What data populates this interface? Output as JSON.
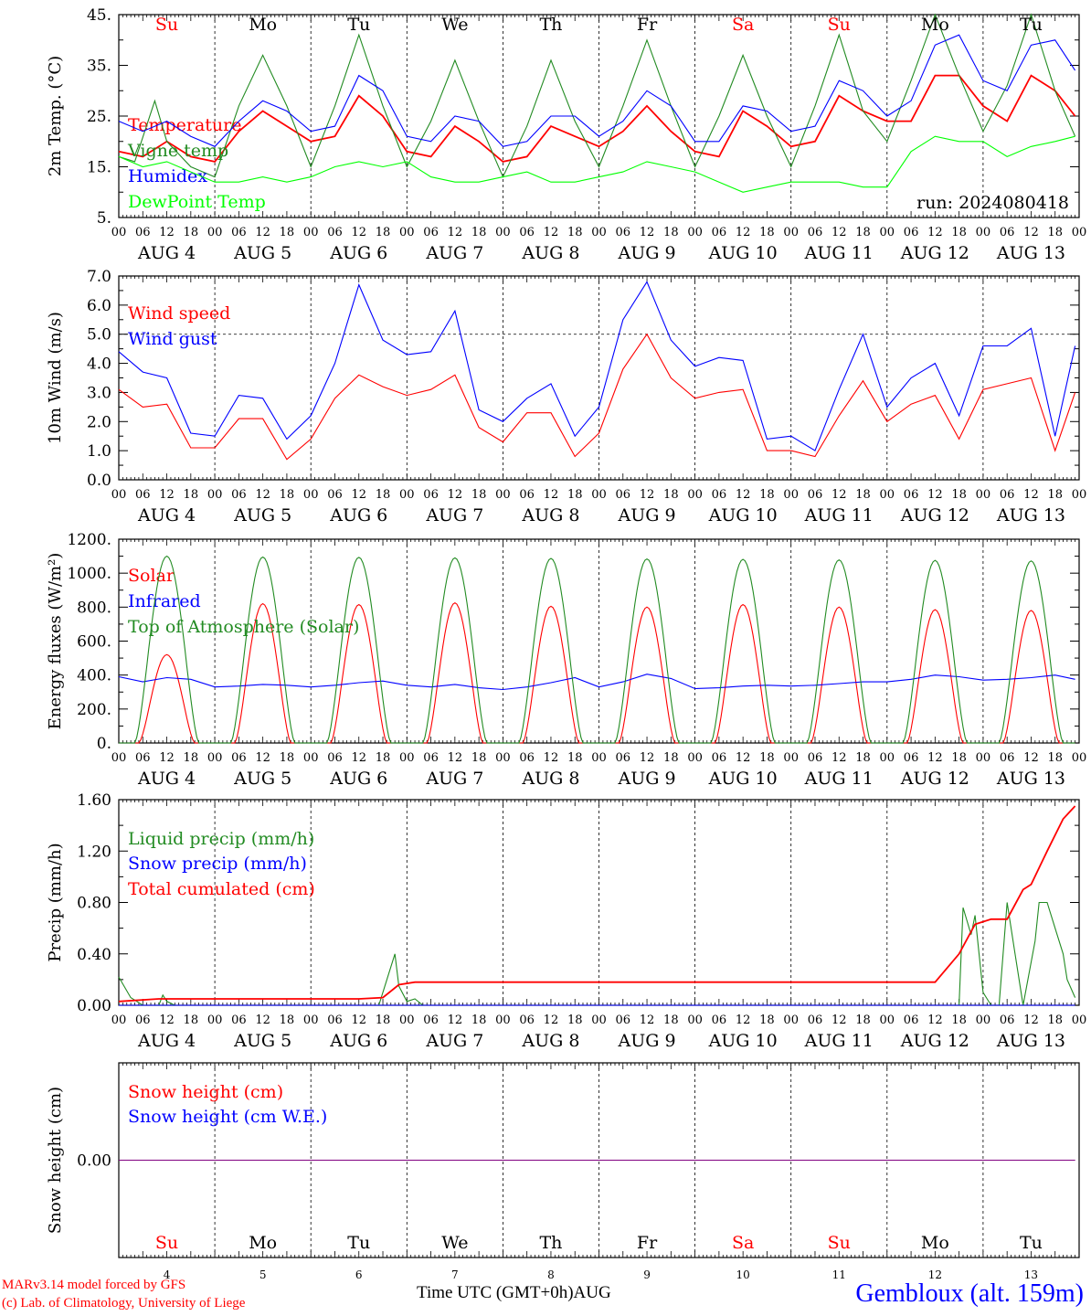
{
  "run_label": "run: 2024080418",
  "days": [
    "Su",
    "Mo",
    "Tu",
    "We",
    "Th",
    "Fr",
    "Sa",
    "Su",
    "Mo",
    "Tu"
  ],
  "day_colors": [
    "#ff0000",
    "#000000",
    "#000000",
    "#000000",
    "#000000",
    "#000000",
    "#ff0000",
    "#ff0000",
    "#000000",
    "#000000"
  ],
  "date_labels": [
    "AUG  4",
    "AUG  5",
    "AUG  6",
    "AUG  7",
    "AUG  8",
    "AUG  9",
    "AUG 10",
    "AUG 11",
    "AUG 12",
    "AUG 13"
  ],
  "hour_labels": [
    "00",
    "06",
    "12",
    "18"
  ],
  "bottom_day_numbers": [
    "4",
    "5",
    "6",
    "7",
    "8",
    "9",
    "10",
    "11",
    "12",
    "13"
  ],
  "footer": {
    "model": "MARv3.14 model forced by GFS",
    "credit": "(c) Lab. of Climatology, University of Liege",
    "xlabel": "Time UTC (GMT+0h)",
    "month": "AUG",
    "station": "Gembloux (alt. 159m)"
  },
  "chart_data": [
    {
      "type": "line",
      "ylabel": "2m Temp. (°C)",
      "ylim": [
        5,
        45
      ],
      "yticks": [
        "45.",
        "35.",
        "25.",
        "15.",
        "5."
      ],
      "x_unit": "hours since AUG 4 00 UTC",
      "grid": "vertical dashed day lines",
      "legend_position": "left",
      "series": [
        {
          "name": "Temperature",
          "color": "#ff0000",
          "x": [
            0,
            6,
            12,
            18,
            24,
            30,
            36,
            42,
            48,
            54,
            60,
            66,
            72,
            78,
            84,
            90,
            96,
            102,
            108,
            114,
            120,
            126,
            132,
            138,
            144,
            150,
            156,
            162,
            168,
            174,
            180,
            186,
            192,
            198,
            204,
            210,
            216,
            222,
            228,
            234,
            239
          ],
          "values": [
            18,
            17,
            20,
            17,
            16,
            22,
            26,
            23,
            20,
            21,
            29,
            25,
            18,
            17,
            23,
            20,
            16,
            17,
            23,
            21,
            19,
            22,
            27,
            22,
            18,
            17,
            26,
            23,
            19,
            20,
            29,
            26,
            24,
            24,
            33,
            33,
            27,
            24,
            33,
            30,
            25
          ]
        },
        {
          "name": "Vigne temp",
          "color": "#228b22",
          "x": [
            0,
            4,
            9,
            12,
            18,
            24,
            30,
            36,
            42,
            48,
            54,
            60,
            66,
            72,
            78,
            84,
            90,
            96,
            102,
            108,
            114,
            120,
            126,
            132,
            138,
            144,
            150,
            156,
            162,
            168,
            174,
            180,
            186,
            192,
            198,
            204,
            210,
            216,
            222,
            228,
            234,
            239
          ],
          "values": [
            17,
            16,
            28,
            20,
            15,
            13,
            27,
            37,
            27,
            15,
            27,
            41,
            27,
            15,
            24,
            36,
            24,
            13,
            23,
            36,
            24,
            15,
            27,
            40,
            27,
            15,
            25,
            37,
            25,
            15,
            27,
            41,
            26,
            20,
            32,
            45,
            33,
            22,
            31,
            45,
            30,
            21
          ]
        },
        {
          "name": "Humidex",
          "color": "#0000ff",
          "x": [
            0,
            6,
            12,
            18,
            24,
            30,
            36,
            42,
            48,
            54,
            60,
            66,
            72,
            78,
            84,
            90,
            96,
            102,
            108,
            114,
            120,
            126,
            132,
            138,
            144,
            150,
            156,
            162,
            168,
            174,
            180,
            186,
            192,
            198,
            204,
            210,
            216,
            222,
            228,
            234,
            239
          ],
          "values": [
            24,
            22,
            24,
            21,
            19,
            24,
            28,
            26,
            22,
            23,
            33,
            30,
            21,
            20,
            25,
            24,
            19,
            20,
            25,
            25,
            21,
            24,
            30,
            27,
            20,
            20,
            27,
            26,
            22,
            23,
            32,
            30,
            25,
            28,
            39,
            41,
            32,
            30,
            39,
            40,
            34
          ]
        },
        {
          "name": "DewPoint Temp",
          "color": "#00ff00",
          "x": [
            0,
            6,
            12,
            18,
            24,
            30,
            36,
            42,
            48,
            54,
            60,
            66,
            72,
            78,
            84,
            90,
            96,
            102,
            108,
            114,
            120,
            126,
            132,
            138,
            144,
            150,
            156,
            162,
            168,
            174,
            180,
            186,
            192,
            198,
            204,
            210,
            216,
            222,
            228,
            234,
            239
          ],
          "values": [
            17,
            15,
            16,
            14,
            12,
            12,
            13,
            12,
            13,
            15,
            16,
            15,
            16,
            13,
            12,
            12,
            13,
            14,
            12,
            12,
            13,
            14,
            16,
            15,
            14,
            12,
            10,
            11,
            12,
            12,
            12,
            11,
            11,
            18,
            21,
            20,
            20,
            17,
            19,
            20,
            21
          ]
        }
      ]
    },
    {
      "type": "line",
      "ylabel": "10m Wind (m/s)",
      "ylim": [
        0,
        7
      ],
      "yticks": [
        "7.0",
        "6.0",
        "5.0",
        "4.0",
        "3.0",
        "2.0",
        "1.0",
        "0.0"
      ],
      "reference_line": 5.0,
      "legend_position": "left",
      "series": [
        {
          "name": "Wind speed",
          "color": "#ff0000",
          "x": [
            0,
            6,
            12,
            18,
            24,
            30,
            36,
            42,
            48,
            54,
            60,
            66,
            72,
            78,
            84,
            90,
            96,
            102,
            108,
            114,
            120,
            126,
            132,
            138,
            144,
            150,
            156,
            162,
            168,
            174,
            180,
            186,
            192,
            198,
            204,
            210,
            216,
            222,
            228,
            234,
            239
          ],
          "values": [
            3.1,
            2.5,
            2.6,
            1.1,
            1.1,
            2.1,
            2.1,
            0.7,
            1.4,
            2.8,
            3.6,
            3.2,
            2.9,
            3.1,
            3.6,
            1.8,
            1.3,
            2.3,
            2.3,
            0.8,
            1.6,
            3.8,
            5.0,
            3.5,
            2.8,
            3.0,
            3.1,
            1.0,
            1.0,
            0.8,
            2.2,
            3.4,
            2.0,
            2.6,
            2.9,
            1.4,
            3.1,
            3.3,
            3.5,
            1.0,
            3.0
          ]
        },
        {
          "name": "Wind gust",
          "color": "#0000ff",
          "x": [
            0,
            6,
            12,
            18,
            24,
            30,
            36,
            42,
            48,
            54,
            60,
            66,
            72,
            78,
            84,
            90,
            96,
            102,
            108,
            114,
            120,
            126,
            132,
            138,
            144,
            150,
            156,
            162,
            168,
            174,
            180,
            186,
            192,
            198,
            204,
            210,
            216,
            222,
            228,
            234,
            239
          ],
          "values": [
            4.4,
            3.7,
            3.5,
            1.6,
            1.5,
            2.9,
            2.8,
            1.4,
            2.2,
            4.0,
            6.7,
            4.8,
            4.3,
            4.4,
            5.8,
            2.4,
            2.0,
            2.8,
            3.3,
            1.5,
            2.5,
            5.5,
            6.8,
            4.8,
            3.9,
            4.2,
            4.1,
            1.4,
            1.5,
            1.0,
            3.1,
            5.0,
            2.5,
            3.5,
            4.0,
            2.2,
            4.6,
            4.6,
            5.2,
            1.5,
            4.6
          ]
        }
      ]
    },
    {
      "type": "line",
      "ylabel": "Energy fluxes (W/m²)",
      "ylim": [
        0,
        1200
      ],
      "yticks": [
        "1200.",
        "1000.",
        "800.",
        "600.",
        "400.",
        "200.",
        "0."
      ],
      "legend_position": "left",
      "series": [
        {
          "name": "Solar",
          "color": "#ff0000",
          "peaks": [
            520,
            820,
            815,
            825,
            805,
            800,
            815,
            800,
            785,
            780
          ],
          "sunrise_h": 5,
          "sunset_h": 19
        },
        {
          "name": "Infrared",
          "color": "#0000ff",
          "x": [
            0,
            6,
            12,
            18,
            24,
            30,
            36,
            42,
            48,
            54,
            60,
            66,
            72,
            78,
            84,
            90,
            96,
            102,
            108,
            114,
            120,
            126,
            132,
            138,
            144,
            150,
            156,
            162,
            168,
            174,
            180,
            186,
            192,
            198,
            204,
            210,
            216,
            222,
            228,
            234,
            239
          ],
          "values": [
            390,
            360,
            385,
            375,
            330,
            335,
            345,
            340,
            330,
            340,
            355,
            365,
            340,
            330,
            345,
            325,
            315,
            330,
            355,
            385,
            330,
            360,
            405,
            380,
            320,
            325,
            335,
            340,
            335,
            340,
            350,
            360,
            360,
            375,
            400,
            390,
            370,
            375,
            385,
            400,
            375
          ]
        },
        {
          "name": "Top of Atmosphere (Solar)",
          "color": "#228b22",
          "peaks": [
            1100,
            1095,
            1093,
            1090,
            1087,
            1084,
            1081,
            1078,
            1075,
            1072
          ],
          "sunrise_h": 4,
          "sunset_h": 20
        }
      ]
    },
    {
      "type": "line",
      "ylabel": "Precip (mm/h)",
      "ylim": [
        0,
        1.6
      ],
      "yticks": [
        "1.60",
        "1.20",
        "0.80",
        "0.40",
        "0.00"
      ],
      "legend_position": "left",
      "series": [
        {
          "name": "Liquid precip (mm/h)",
          "color": "#228b22",
          "x": [
            0,
            3,
            6,
            10,
            11,
            12,
            14,
            24,
            48,
            60,
            65,
            67,
            69,
            70,
            72,
            74,
            76,
            78,
            100,
            204,
            210,
            211,
            213,
            214,
            215,
            216,
            217,
            218,
            220,
            222,
            224,
            226,
            229,
            230,
            232,
            234,
            236,
            237,
            239
          ],
          "values": [
            0.22,
            0.06,
            0,
            0,
            0.08,
            0.03,
            0,
            0,
            0,
            0,
            0,
            0.2,
            0.4,
            0.15,
            0.03,
            0.05,
            0,
            0,
            0,
            0,
            0,
            0.76,
            0.55,
            0.7,
            0.4,
            0.1,
            0.05,
            0,
            0,
            0.8,
            0.4,
            0,
            0.5,
            0.8,
            0.8,
            0.6,
            0.4,
            0.2,
            0.06
          ]
        },
        {
          "name": "Snow precip (mm/h)",
          "color": "#0000ff",
          "x": [
            0,
            239
          ],
          "values": [
            0,
            0
          ]
        },
        {
          "name": "Total cumulated (cm)",
          "color": "#ff0000",
          "x": [
            0,
            10,
            24,
            48,
            60,
            66,
            70,
            74,
            100,
            150,
            204,
            210,
            214,
            218,
            222,
            226,
            228,
            232,
            236,
            239
          ],
          "values": [
            0.03,
            0.05,
            0.05,
            0.05,
            0.05,
            0.06,
            0.16,
            0.18,
            0.18,
            0.18,
            0.18,
            0.4,
            0.63,
            0.67,
            0.67,
            0.9,
            0.94,
            1.2,
            1.45,
            1.55
          ]
        }
      ]
    },
    {
      "type": "line",
      "ylabel": "Snow height (cm)",
      "yticks": [
        "0.00"
      ],
      "legend_position": "left",
      "series": [
        {
          "name": "Snow height (cm)",
          "color": "#ff0000",
          "x": [
            0,
            239
          ],
          "values": [
            0,
            0
          ]
        },
        {
          "name": "Snow height (cm W.E.)",
          "color": "#0000ff",
          "x": [
            0,
            239
          ],
          "values": [
            0,
            0
          ]
        }
      ]
    }
  ]
}
